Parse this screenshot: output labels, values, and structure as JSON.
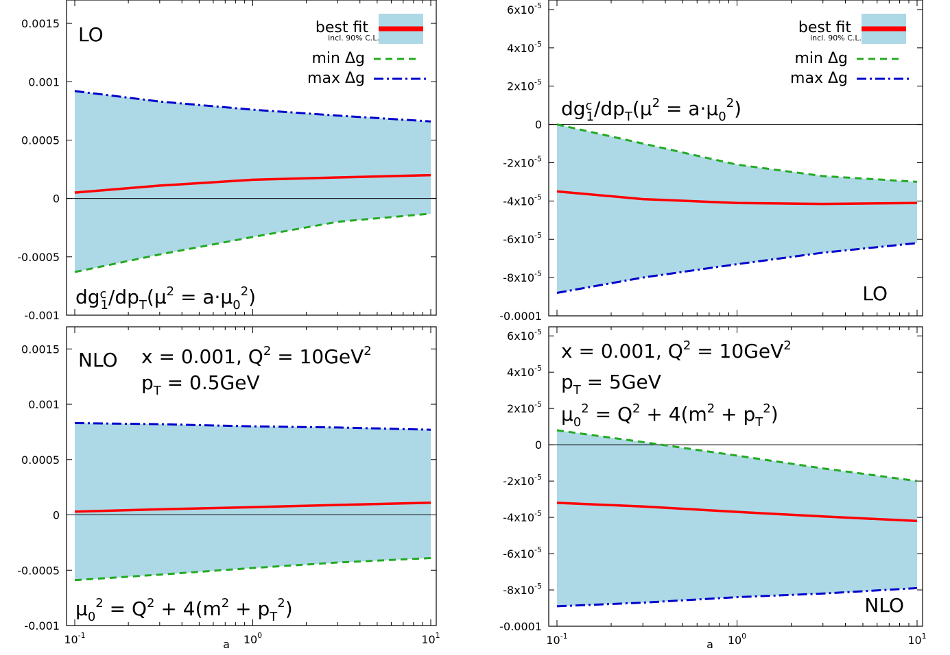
{
  "xlabel": "a",
  "colors": {
    "band": "#add8e6",
    "best": "#ff0000",
    "min": "#22aa22",
    "max": "#0000cc"
  },
  "legend": {
    "best": "best fit",
    "best_sub": "incl. 90% C.L.",
    "min": "min Δg",
    "max": "max Δg"
  },
  "chart_data": [
    {
      "type": "line",
      "panel": "top-left",
      "xscale": "log",
      "xlim": [
        0.1,
        10
      ],
      "ylim": [
        -0.001,
        0.0017
      ],
      "xticks": [],
      "xticklabels": [],
      "yticks": [
        0.0015,
        0.001,
        0.0005,
        0,
        -0.0005,
        -0.001
      ],
      "yticklabels": [
        "0.0015",
        "0.001",
        "0.0005",
        "0",
        "-0.0005",
        "-0.001"
      ],
      "labels": [
        "LO",
        "dg₁ᶜ/dpT(μ² = a·μ₀²)"
      ],
      "legend": true,
      "x": [
        0.1,
        0.3,
        1,
        3,
        10
      ],
      "series": [
        {
          "name": "best fit",
          "key": "best",
          "values": [
            5e-05,
            0.00011,
            0.00016,
            0.00018,
            0.0002
          ]
        },
        {
          "name": "min Δg",
          "key": "min",
          "values": [
            -0.00063,
            -0.00048,
            -0.00033,
            -0.0002,
            -0.00013
          ]
        },
        {
          "name": "max Δg",
          "key": "max",
          "values": [
            0.00092,
            0.00083,
            0.00076,
            0.00071,
            0.00066
          ]
        }
      ]
    },
    {
      "type": "line",
      "panel": "top-right",
      "xscale": "log",
      "xlim": [
        0.1,
        10
      ],
      "ylim": [
        -0.0001,
        6.5e-05
      ],
      "xticks": [],
      "xticklabels": [],
      "yticks": [
        6e-05,
        4e-05,
        2e-05,
        0,
        -2e-05,
        -4e-05,
        -6e-05,
        -8e-05,
        -0.0001
      ],
      "yticklabels": [
        "6x10-5",
        "4x10-5",
        "2x10-5",
        "0",
        "-2x10-5",
        "-4x10-5",
        "-6x10-5",
        "-8x10-5",
        "-0.0001"
      ],
      "labels": [
        "dg₁ᶜ/dpT(μ² = a·μ₀²)",
        "LO"
      ],
      "legend": true,
      "x": [
        0.1,
        0.3,
        1,
        3,
        10
      ],
      "series": [
        {
          "name": "best fit",
          "key": "best",
          "values": [
            -3.5e-05,
            -3.9e-05,
            -4.1e-05,
            -4.15e-05,
            -4.1e-05
          ]
        },
        {
          "name": "min Δg",
          "key": "min",
          "values": [
            0,
            -1e-05,
            -2.1e-05,
            -2.7e-05,
            -3e-05
          ]
        },
        {
          "name": "max Δg",
          "key": "max",
          "values": [
            -8.8e-05,
            -8e-05,
            -7.3e-05,
            -6.7e-05,
            -6.2e-05
          ]
        }
      ]
    },
    {
      "type": "line",
      "panel": "bottom-left",
      "xscale": "log",
      "xlim": [
        0.1,
        10
      ],
      "ylim": [
        -0.001,
        0.0017
      ],
      "xticks": [
        0.1,
        1,
        10
      ],
      "xticklabels": [
        "10-1",
        "100",
        "101"
      ],
      "yticks": [
        0.0015,
        0.001,
        0.0005,
        0,
        -0.0005,
        -0.001
      ],
      "yticklabels": [
        "0.0015",
        "0.001",
        "0.0005",
        "0",
        "-0.0005",
        "-0.001"
      ],
      "labels": [
        "NLO",
        "x = 0.001, Q² = 10GeV²",
        "pT = 0.5GeV",
        "μ₀² = Q² + 4(m² + pT²)"
      ],
      "legend": false,
      "x": [
        0.1,
        0.3,
        1,
        3,
        10
      ],
      "series": [
        {
          "name": "best fit",
          "key": "best",
          "values": [
            3e-05,
            5e-05,
            7e-05,
            9e-05,
            0.00011
          ]
        },
        {
          "name": "min Δg",
          "key": "min",
          "values": [
            -0.00059,
            -0.00054,
            -0.00048,
            -0.00043,
            -0.00039
          ]
        },
        {
          "name": "max Δg",
          "key": "max",
          "values": [
            0.00083,
            0.00082,
            0.0008,
            0.00079,
            0.00077
          ]
        }
      ]
    },
    {
      "type": "line",
      "panel": "bottom-right",
      "xscale": "log",
      "xlim": [
        0.1,
        10
      ],
      "ylim": [
        -0.0001,
        6.5e-05
      ],
      "xticks": [
        0.1,
        1,
        10
      ],
      "xticklabels": [
        "10-1",
        "100",
        "101"
      ],
      "yticks": [
        6e-05,
        4e-05,
        2e-05,
        0,
        -2e-05,
        -4e-05,
        -6e-05,
        -8e-05,
        -0.0001
      ],
      "yticklabels": [
        "6x10-5",
        "4x10-5",
        "2x10-5",
        "0",
        "-2x10-5",
        "-4x10-5",
        "-6x10-5",
        "-8x10-5",
        "-0.0001"
      ],
      "labels": [
        "x = 0.001, Q² = 10GeV²",
        "pT = 5GeV",
        "μ₀² = Q² + 4(m² + pT²)",
        "NLO"
      ],
      "legend": false,
      "x": [
        0.1,
        0.3,
        1,
        3,
        10
      ],
      "series": [
        {
          "name": "best fit",
          "key": "best",
          "values": [
            -3.2e-05,
            -3.4e-05,
            -3.7e-05,
            -3.95e-05,
            -4.2e-05
          ]
        },
        {
          "name": "min Δg",
          "key": "min",
          "values": [
            8e-06,
            1.5e-06,
            -6e-06,
            -1.3e-05,
            -2e-05
          ]
        },
        {
          "name": "max Δg",
          "key": "max",
          "values": [
            -8.9e-05,
            -8.7e-05,
            -8.4e-05,
            -8.2e-05,
            -7.9e-05
          ]
        }
      ]
    }
  ]
}
